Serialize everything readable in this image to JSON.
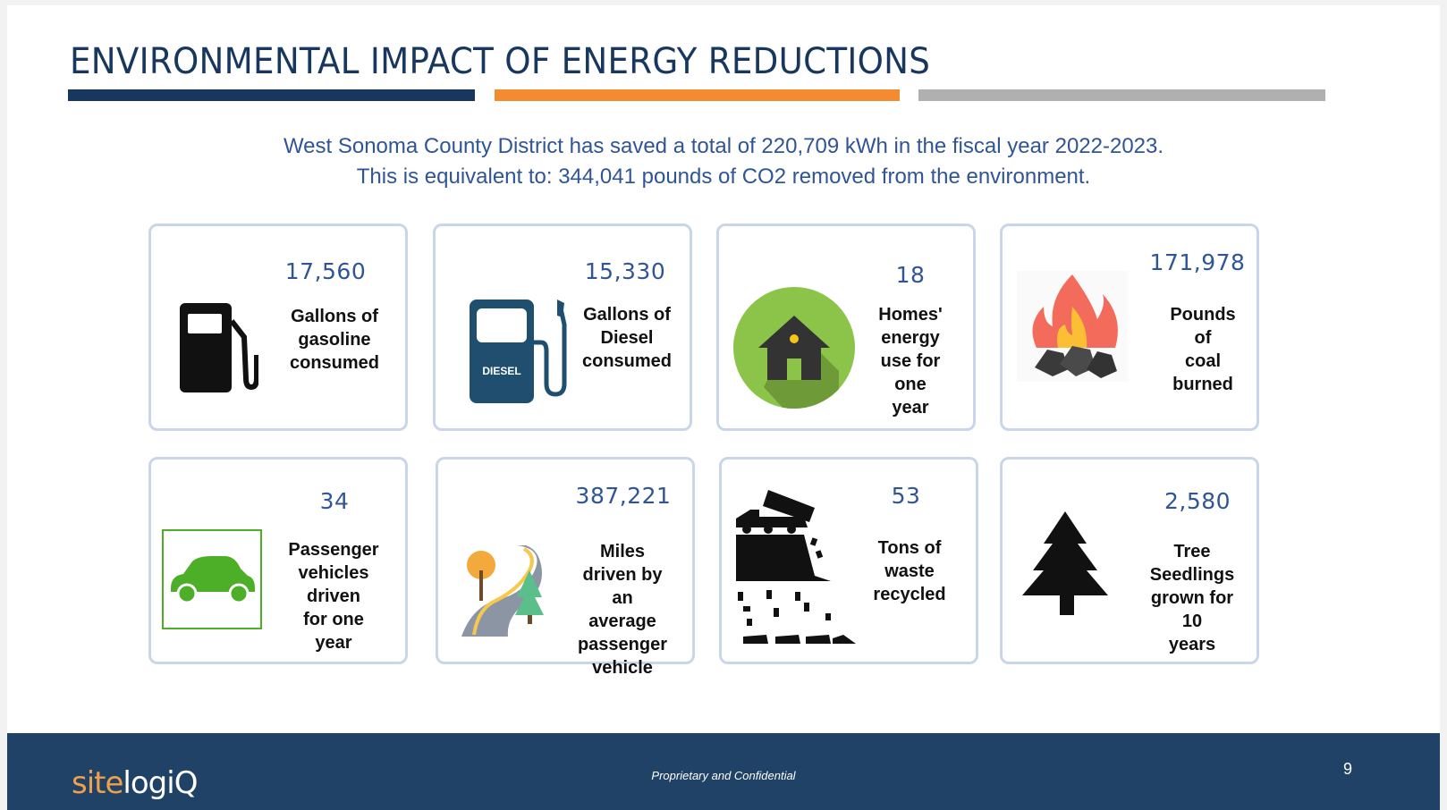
{
  "title": "ENVIRONMENTAL IMPACT OF ENERGY REDUCTIONS",
  "subtitle": {
    "line1": "West Sonoma County District has saved a total of 220,709 kWh in the fiscal year 2022-2023.",
    "line2": "This is equivalent to: 344,041 pounds of CO2 removed from the environment."
  },
  "colors": {
    "navy": "#17375e",
    "orange": "#f38b31",
    "gray": "#b0b0b0",
    "accent": "#2f5597"
  },
  "cards": [
    {
      "value": "17,560",
      "lines": [
        "Gallons of",
        "gasoline",
        "consumed"
      ],
      "icon": "gas-pump-icon"
    },
    {
      "value": "15,330",
      "lines": [
        "Gallons of",
        "Diesel",
        "consumed"
      ],
      "icon": "diesel-pump-icon",
      "icon_text": "DIESEL"
    },
    {
      "value": "18",
      "lines": [
        "Homes'",
        "energy",
        "use for one",
        "year"
      ],
      "icon": "home-icon"
    },
    {
      "value": "171,978",
      "lines": [
        "Pounds of",
        "coal burned"
      ],
      "icon": "fire-coal-icon"
    },
    {
      "value": "34",
      "lines": [
        "Passenger",
        "vehicles driven",
        "for one year"
      ],
      "icon": "car-icon"
    },
    {
      "value": "387,221",
      "lines": [
        "Miles driven by",
        "an average",
        "passenger",
        "vehicle"
      ],
      "icon": "road-icon"
    },
    {
      "value": "53",
      "lines": [
        "Tons of",
        "waste",
        "recycled"
      ],
      "icon": "dump-truck-icon"
    },
    {
      "value": "2,580",
      "lines": [
        "Tree",
        "Seedlings",
        "grown for 10",
        "years"
      ],
      "icon": "tree-icon"
    }
  ],
  "footer": {
    "logo": "sitelogiQ",
    "confidential": "Proprietary and Confidential",
    "page": "9"
  }
}
